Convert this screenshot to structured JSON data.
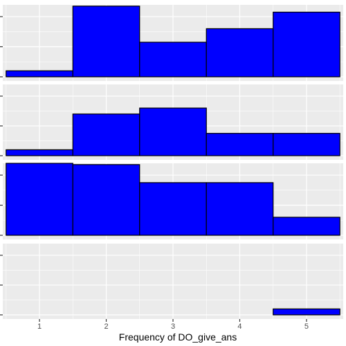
{
  "chart_data": {
    "type": "bar",
    "layout": "faceted-histogram-vertical",
    "xlabel": "Frequency of DO_give_ans",
    "ylabel": "",
    "x_ticks": [
      1,
      2,
      3,
      4,
      5
    ],
    "xlim": [
      0.45,
      5.55
    ],
    "bin_width": 1,
    "ylim": [
      0,
      2.3
    ],
    "y_ticks": [
      0,
      1,
      2
    ],
    "grid": true,
    "bar_fill": "#0000FF",
    "bar_stroke": "#000000",
    "panel_background": "#EBEBEB",
    "grid_color": "#FFFFFF",
    "panels": [
      {
        "x": [
          1,
          2,
          3,
          4,
          5
        ],
        "values": [
          0.2,
          2.35,
          1.15,
          1.6,
          2.15
        ]
      },
      {
        "x": [
          1,
          2,
          3,
          4,
          5
        ],
        "values": [
          0.2,
          1.4,
          1.6,
          0.75,
          0.75
        ]
      },
      {
        "x": [
          1,
          2,
          3,
          4,
          5
        ],
        "values": [
          2.55,
          2.35,
          1.75,
          1.75,
          0.6
        ]
      },
      {
        "x": [
          1,
          2,
          3,
          4,
          5
        ],
        "values": [
          0,
          0,
          0,
          0,
          0.2
        ]
      }
    ]
  }
}
